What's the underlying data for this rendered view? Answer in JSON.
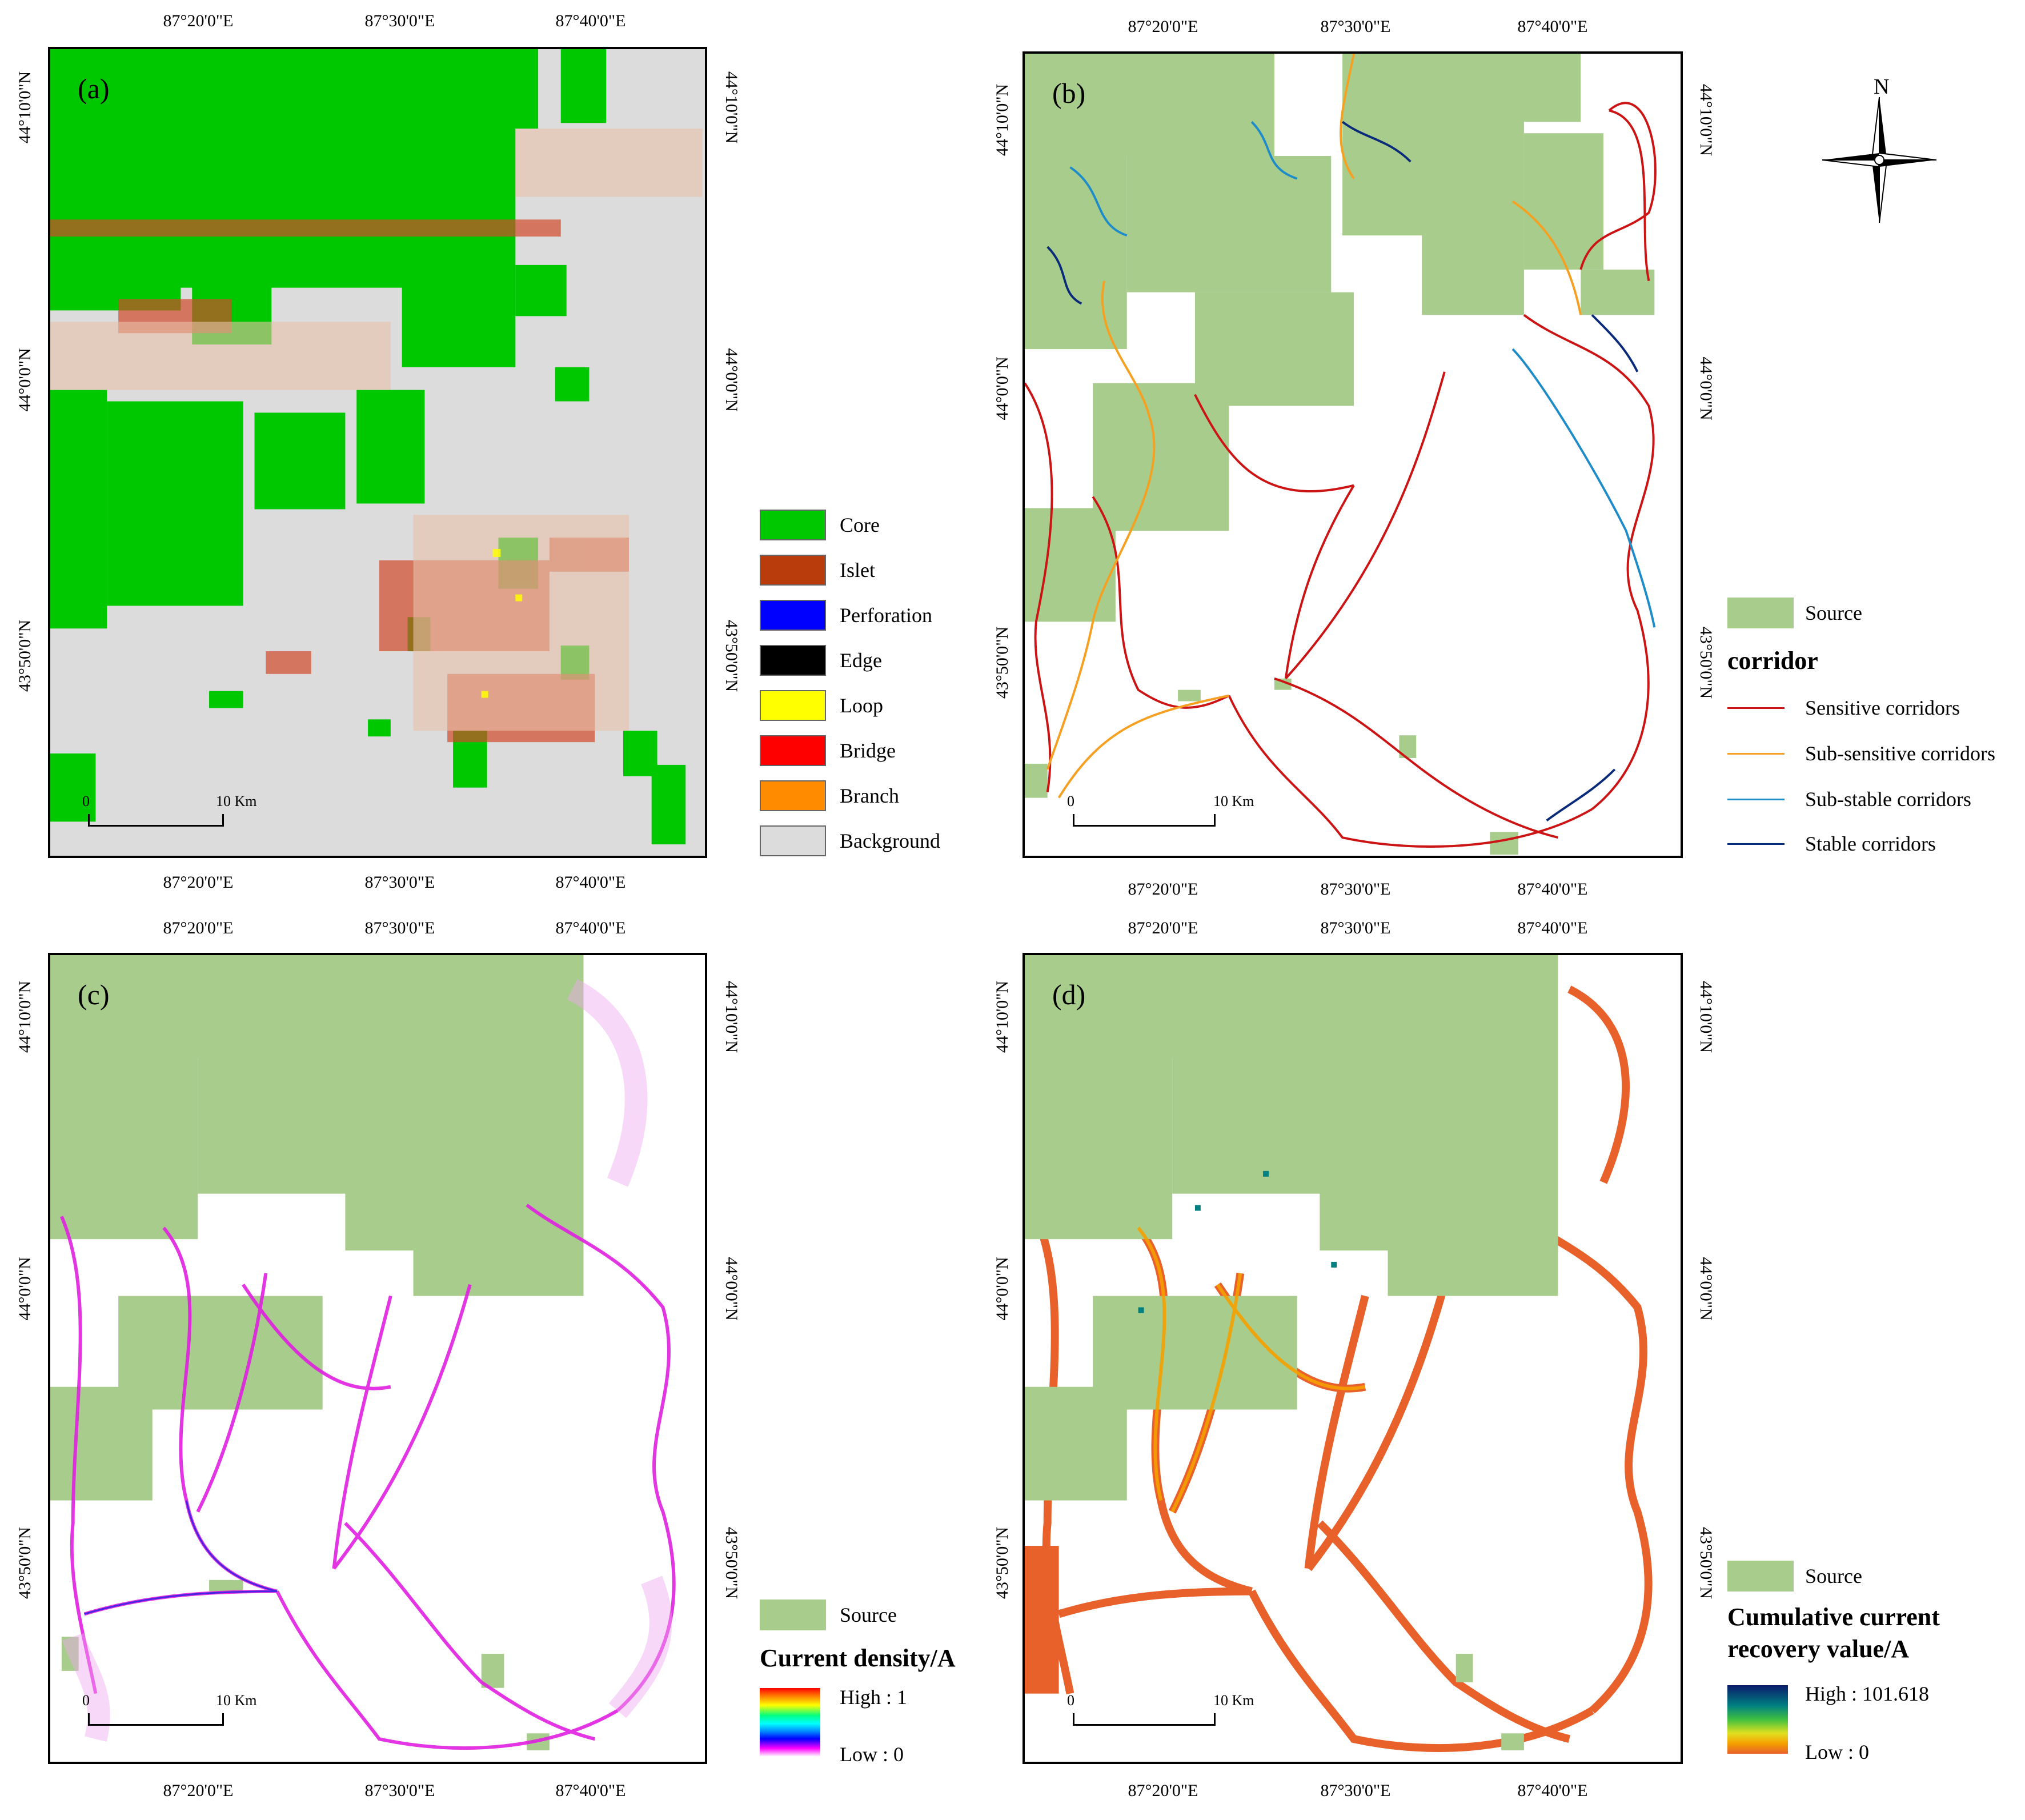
{
  "axes": {
    "lon_ticks": [
      "87°20'0\"E",
      "87°30'0\"E",
      "87°40'0\"E"
    ],
    "lat_ticks": [
      "44°10'0\"N",
      "44°0'0\"N",
      "43°50'0\"N"
    ]
  },
  "scale": {
    "zero": "0",
    "ten": "10 Km"
  },
  "panels": {
    "a": {
      "label": "(a)"
    },
    "b": {
      "label": "(b)"
    },
    "c": {
      "label": "(c)"
    },
    "d": {
      "label": "(d)"
    }
  },
  "north_arrow": {
    "label": "N"
  },
  "legend_a": {
    "items": [
      {
        "label": "Core",
        "color": "#00c800"
      },
      {
        "label": "Islet",
        "color": "#b93c0c"
      },
      {
        "label": "Perforation",
        "color": "#0000ff"
      },
      {
        "label": "Edge",
        "color": "#000000"
      },
      {
        "label": "Loop",
        "color": "#ffff00"
      },
      {
        "label": "Bridge",
        "color": "#ff0000"
      },
      {
        "label": "Branch",
        "color": "#ff8c00"
      },
      {
        "label": "Background",
        "color": "#dcdcdc"
      }
    ]
  },
  "legend_b": {
    "source": "Source",
    "title": "corridor",
    "items": [
      {
        "label": "Sensitive corridors",
        "color": "#cc1414"
      },
      {
        "label": "Sub-sensitive corridors",
        "color": "#f5a020"
      },
      {
        "label": "Sub-stable corridors",
        "color": "#1e8cc8"
      },
      {
        "label": "Stable corridors",
        "color": "#0a2a7a"
      }
    ]
  },
  "legend_c": {
    "source": "Source",
    "title": "Current density/A",
    "high": "High : 1",
    "low": "Low : 0"
  },
  "legend_d": {
    "source": "Source",
    "title_line1": "Cumulative current",
    "title_line2": "recovery value/A",
    "high": "High : 101.618",
    "low": "Low : 0"
  },
  "colors": {
    "source": "#a8cc8c",
    "core": "#00c800",
    "background_gray": "#dcdcdc",
    "current_magenta": "#e020e0",
    "recovery_orange": "#e8602a"
  }
}
